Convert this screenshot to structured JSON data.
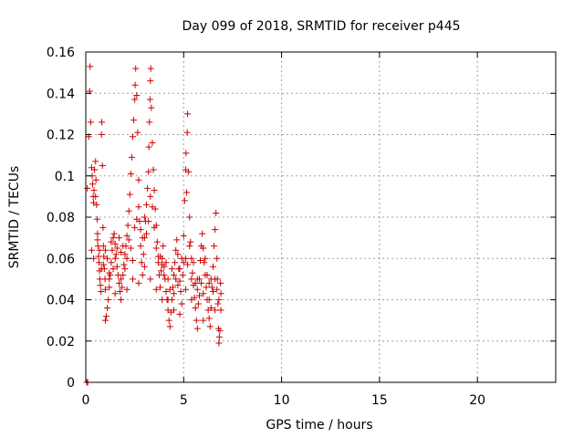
{
  "chart_data": {
    "type": "scatter",
    "title": "Day 099 of 2018, SRMTID for receiver p445",
    "xlabel": "GPS time / hours",
    "ylabel": "SRMTID / TECUs",
    "xlim": [
      0,
      24
    ],
    "ylim": [
      0,
      0.16
    ],
    "xticks": [
      0,
      5,
      10,
      15,
      20
    ],
    "yticks": [
      0,
      0.02,
      0.04,
      0.06,
      0.08,
      0.1,
      0.12,
      0.14,
      0.16
    ],
    "xtick_labels": [
      "0",
      "5",
      "10",
      "15",
      "20"
    ],
    "ytick_labels": [
      "0",
      "0.02",
      "0.04",
      "0.06",
      "0.08",
      "0.1",
      "0.12",
      "0.14",
      "0.16"
    ],
    "grid": true,
    "marker": "+",
    "series": [
      {
        "name": "SRMTID",
        "color": "#cc0000",
        "points": [
          [
            0.05,
            0.0
          ],
          [
            0.1,
            0.0
          ],
          [
            0.08,
            0.094
          ],
          [
            0.15,
            0.119
          ],
          [
            0.2,
            0.141
          ],
          [
            0.22,
            0.153
          ],
          [
            0.25,
            0.126
          ],
          [
            0.3,
            0.104
          ],
          [
            0.33,
            0.1
          ],
          [
            0.35,
            0.096
          ],
          [
            0.38,
            0.09
          ],
          [
            0.4,
            0.087
          ],
          [
            0.42,
            0.093
          ],
          [
            0.45,
            0.103
          ],
          [
            0.5,
            0.107
          ],
          [
            0.52,
            0.098
          ],
          [
            0.55,
            0.086
          ],
          [
            0.58,
            0.079
          ],
          [
            0.6,
            0.072
          ],
          [
            0.62,
            0.066
          ],
          [
            0.65,
            0.061
          ],
          [
            0.68,
            0.058
          ],
          [
            0.7,
            0.054
          ],
          [
            0.72,
            0.05
          ],
          [
            0.75,
            0.047
          ],
          [
            0.78,
            0.044
          ],
          [
            0.8,
            0.12
          ],
          [
            0.82,
            0.126
          ],
          [
            0.85,
            0.105
          ],
          [
            0.88,
            0.075
          ],
          [
            0.9,
            0.066
          ],
          [
            0.92,
            0.061
          ],
          [
            0.95,
            0.055
          ],
          [
            0.98,
            0.05
          ],
          [
            1.0,
            0.03
          ],
          [
            1.05,
            0.032
          ],
          [
            1.1,
            0.036
          ],
          [
            1.15,
            0.04
          ],
          [
            1.2,
            0.046
          ],
          [
            1.25,
            0.052
          ],
          [
            1.3,
            0.058
          ],
          [
            1.35,
            0.064
          ],
          [
            1.4,
            0.07
          ],
          [
            1.45,
            0.072
          ],
          [
            1.5,
            0.067
          ],
          [
            1.55,
            0.062
          ],
          [
            1.6,
            0.056
          ],
          [
            1.65,
            0.052
          ],
          [
            1.7,
            0.048
          ],
          [
            1.75,
            0.044
          ],
          [
            1.8,
            0.04
          ],
          [
            1.85,
            0.046
          ],
          [
            1.9,
            0.052
          ],
          [
            1.95,
            0.057
          ],
          [
            2.0,
            0.062
          ],
          [
            2.05,
            0.066
          ],
          [
            2.1,
            0.071
          ],
          [
            2.15,
            0.076
          ],
          [
            2.2,
            0.083
          ],
          [
            2.25,
            0.091
          ],
          [
            2.3,
            0.101
          ],
          [
            2.35,
            0.109
          ],
          [
            2.4,
            0.119
          ],
          [
            2.45,
            0.127
          ],
          [
            2.5,
            0.137
          ],
          [
            2.52,
            0.144
          ],
          [
            2.55,
            0.152
          ],
          [
            2.6,
            0.139
          ],
          [
            2.65,
            0.121
          ],
          [
            2.7,
            0.098
          ],
          [
            2.75,
            0.078
          ],
          [
            2.8,
            0.066
          ],
          [
            2.85,
            0.058
          ],
          [
            2.9,
            0.052
          ],
          [
            2.95,
            0.062
          ],
          [
            3.0,
            0.07
          ],
          [
            3.05,
            0.078
          ],
          [
            3.1,
            0.086
          ],
          [
            3.15,
            0.094
          ],
          [
            3.2,
            0.102
          ],
          [
            3.22,
            0.114
          ],
          [
            3.25,
            0.126
          ],
          [
            3.28,
            0.137
          ],
          [
            3.3,
            0.146
          ],
          [
            3.32,
            0.152
          ],
          [
            3.35,
            0.133
          ],
          [
            3.4,
            0.116
          ],
          [
            3.45,
            0.103
          ],
          [
            3.5,
            0.093
          ],
          [
            3.55,
            0.084
          ],
          [
            3.6,
            0.076
          ],
          [
            3.65,
            0.068
          ],
          [
            3.7,
            0.061
          ],
          [
            3.75,
            0.052
          ],
          [
            3.8,
            0.046
          ],
          [
            3.85,
            0.054
          ],
          [
            3.9,
            0.06
          ],
          [
            3.95,
            0.066
          ],
          [
            4.0,
            0.056
          ],
          [
            4.05,
            0.05
          ],
          [
            4.1,
            0.044
          ],
          [
            4.15,
            0.04
          ],
          [
            4.2,
            0.035
          ],
          [
            4.25,
            0.03
          ],
          [
            4.3,
            0.027
          ],
          [
            4.35,
            0.034
          ],
          [
            4.4,
            0.04
          ],
          [
            4.45,
            0.046
          ],
          [
            4.5,
            0.052
          ],
          [
            4.55,
            0.058
          ],
          [
            4.6,
            0.064
          ],
          [
            4.65,
            0.069
          ],
          [
            4.7,
            0.062
          ],
          [
            4.75,
            0.055
          ],
          [
            4.8,
            0.049
          ],
          [
            4.85,
            0.044
          ],
          [
            4.9,
            0.038
          ],
          [
            4.95,
            0.052
          ],
          [
            5.0,
            0.071
          ],
          [
            5.05,
            0.088
          ],
          [
            5.1,
            0.103
          ],
          [
            5.12,
            0.111
          ],
          [
            5.15,
            0.092
          ],
          [
            5.18,
            0.121
          ],
          [
            5.2,
            0.13
          ],
          [
            5.25,
            0.102
          ],
          [
            5.3,
            0.08
          ],
          [
            5.35,
            0.068
          ],
          [
            5.4,
            0.06
          ],
          [
            5.45,
            0.053
          ],
          [
            5.5,
            0.047
          ],
          [
            5.55,
            0.041
          ],
          [
            5.6,
            0.036
          ],
          [
            5.65,
            0.03
          ],
          [
            5.7,
            0.026
          ],
          [
            5.75,
            0.038
          ],
          [
            5.8,
            0.05
          ],
          [
            5.85,
            0.059
          ],
          [
            5.9,
            0.066
          ],
          [
            5.95,
            0.072
          ],
          [
            6.0,
            0.065
          ],
          [
            6.05,
            0.058
          ],
          [
            6.1,
            0.052
          ],
          [
            6.15,
            0.046
          ],
          [
            6.2,
            0.04
          ],
          [
            6.25,
            0.035
          ],
          [
            6.3,
            0.031
          ],
          [
            6.35,
            0.027
          ],
          [
            6.4,
            0.036
          ],
          [
            6.45,
            0.046
          ],
          [
            6.5,
            0.056
          ],
          [
            6.55,
            0.066
          ],
          [
            6.6,
            0.074
          ],
          [
            6.65,
            0.082
          ],
          [
            6.7,
            0.06
          ],
          [
            6.72,
            0.05
          ],
          [
            6.75,
            0.038
          ],
          [
            6.78,
            0.026
          ],
          [
            6.8,
            0.019
          ],
          [
            6.82,
            0.022
          ],
          [
            6.85,
            0.025
          ],
          [
            6.88,
            0.048
          ],
          [
            6.9,
            0.043
          ],
          [
            0.5,
            0.09
          ],
          [
            0.6,
            0.069
          ],
          [
            0.9,
            0.057
          ],
          [
            1.0,
            0.064
          ],
          [
            1.1,
            0.06
          ],
          [
            1.2,
            0.053
          ],
          [
            1.3,
            0.068
          ],
          [
            1.4,
            0.055
          ],
          [
            1.5,
            0.06
          ],
          [
            1.6,
            0.065
          ],
          [
            1.7,
            0.07
          ],
          [
            1.8,
            0.063
          ],
          [
            1.9,
            0.066
          ],
          [
            2.0,
            0.055
          ],
          [
            2.1,
            0.06
          ],
          [
            2.2,
            0.069
          ],
          [
            2.3,
            0.065
          ],
          [
            2.4,
            0.059
          ],
          [
            2.5,
            0.075
          ],
          [
            2.6,
            0.079
          ],
          [
            2.7,
            0.085
          ],
          [
            2.8,
            0.074
          ],
          [
            2.9,
            0.07
          ],
          [
            3.0,
            0.08
          ],
          [
            3.1,
            0.072
          ],
          [
            3.2,
            0.078
          ],
          [
            3.3,
            0.09
          ],
          [
            3.4,
            0.085
          ],
          [
            3.5,
            0.075
          ],
          [
            3.6,
            0.065
          ],
          [
            3.7,
            0.058
          ],
          [
            3.8,
            0.061
          ],
          [
            3.9,
            0.057
          ],
          [
            4.0,
            0.052
          ],
          [
            4.1,
            0.058
          ],
          [
            4.2,
            0.05
          ],
          [
            4.3,
            0.045
          ],
          [
            4.4,
            0.055
          ],
          [
            4.5,
            0.043
          ],
          [
            4.6,
            0.05
          ],
          [
            4.7,
            0.047
          ],
          [
            4.8,
            0.055
          ],
          [
            4.9,
            0.06
          ],
          [
            5.0,
            0.058
          ],
          [
            5.1,
            0.06
          ],
          [
            5.2,
            0.057
          ],
          [
            5.3,
            0.066
          ],
          [
            5.4,
            0.05
          ],
          [
            5.5,
            0.058
          ],
          [
            5.6,
            0.048
          ],
          [
            5.7,
            0.045
          ],
          [
            5.8,
            0.042
          ],
          [
            5.9,
            0.048
          ],
          [
            6.0,
            0.043
          ],
          [
            6.1,
            0.06
          ],
          [
            6.2,
            0.052
          ],
          [
            6.3,
            0.048
          ],
          [
            6.4,
            0.05
          ],
          [
            6.5,
            0.044
          ],
          [
            6.6,
            0.05
          ],
          [
            6.7,
            0.045
          ],
          [
            6.8,
            0.04
          ],
          [
            6.9,
            0.035
          ],
          [
            0.3,
            0.064
          ],
          [
            0.4,
            0.06
          ],
          [
            0.7,
            0.064
          ],
          [
            0.8,
            0.055
          ],
          [
            1.0,
            0.045
          ],
          [
            1.2,
            0.05
          ],
          [
            1.5,
            0.043
          ],
          [
            1.8,
            0.05
          ],
          [
            2.1,
            0.045
          ],
          [
            2.4,
            0.05
          ],
          [
            2.7,
            0.048
          ],
          [
            3.0,
            0.056
          ],
          [
            3.3,
            0.05
          ],
          [
            3.6,
            0.045
          ],
          [
            3.9,
            0.04
          ],
          [
            4.2,
            0.04
          ],
          [
            4.5,
            0.035
          ],
          [
            4.8,
            0.033
          ],
          [
            5.1,
            0.045
          ],
          [
            5.4,
            0.04
          ],
          [
            5.7,
            0.05
          ],
          [
            6.0,
            0.03
          ],
          [
            6.3,
            0.04
          ],
          [
            6.6,
            0.035
          ]
        ]
      }
    ]
  }
}
